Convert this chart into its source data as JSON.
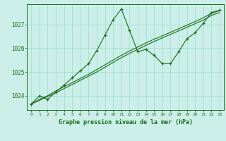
{
  "hours": [
    0,
    1,
    2,
    3,
    4,
    5,
    6,
    7,
    8,
    9,
    10,
    11,
    12,
    13,
    14,
    15,
    16,
    17,
    18,
    19,
    20,
    21,
    22,
    23
  ],
  "pressure_main": [
    1023.65,
    1024.0,
    1023.85,
    1024.15,
    1024.45,
    1024.75,
    1025.05,
    1025.35,
    1025.9,
    1026.55,
    1027.2,
    1027.65,
    1026.75,
    1025.85,
    1025.95,
    1025.7,
    1025.35,
    1025.35,
    1025.85,
    1026.4,
    1026.65,
    1027.05,
    1027.5,
    1027.6
  ],
  "pressure_trend1": [
    1023.65,
    1023.85,
    1024.0,
    1024.2,
    1024.38,
    1024.55,
    1024.73,
    1024.9,
    1025.1,
    1025.3,
    1025.5,
    1025.7,
    1025.88,
    1026.05,
    1026.22,
    1026.38,
    1026.52,
    1026.67,
    1026.82,
    1026.97,
    1027.12,
    1027.28,
    1027.47,
    1027.58
  ],
  "pressure_trend2": [
    1023.65,
    1023.8,
    1023.97,
    1024.12,
    1024.3,
    1024.47,
    1024.65,
    1024.82,
    1025.0,
    1025.2,
    1025.4,
    1025.6,
    1025.78,
    1025.95,
    1026.12,
    1026.28,
    1026.43,
    1026.58,
    1026.73,
    1026.88,
    1027.03,
    1027.18,
    1027.38,
    1027.5
  ],
  "line_color": "#1a6b1a",
  "bg_color": "#cceee8",
  "grid_color": "#99ddcc",
  "xlabel": "Graphe pression niveau de la mer (hPa)",
  "ylim": [
    1023.4,
    1027.85
  ],
  "xlim": [
    -0.5,
    23.5
  ],
  "yticks": [
    1024,
    1025,
    1026,
    1027
  ],
  "xticks": [
    0,
    1,
    2,
    3,
    4,
    5,
    6,
    7,
    8,
    9,
    10,
    11,
    12,
    13,
    14,
    15,
    16,
    17,
    18,
    19,
    20,
    21,
    22,
    23
  ]
}
